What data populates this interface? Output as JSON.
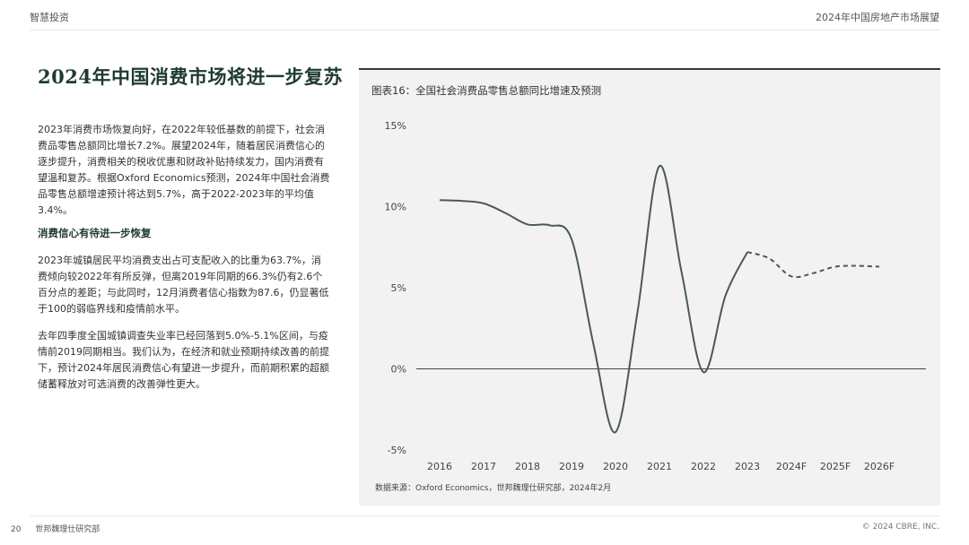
{
  "header": {
    "left": "智慧投资",
    "right": "2024年中国房地产市场展望"
  },
  "main": {
    "title": "2024年中国消费市场将进一步复苏",
    "para1": "2023年消费市场恢复向好，在2022年较低基数的前提下，社会消费品零售总额同比增长7.2%。展望2024年，随着居民消费信心的逐步提升，消费相关的税收优惠和财政补贴持续发力，国内消费有望温和复苏。根据Oxford Economics预测，2024年中国社会消费品零售总额增速预计将达到5.7%，高于2022-2023年的平均值3.4%。",
    "subhead": "消费信心有待进一步恢复",
    "para2": "2023年城镇居民平均消费支出占可支配收入的比重为63.7%，消费倾向较2022年有所反弹，但离2019年同期的66.3%仍有2.6个百分点的差距；与此同时，12月消费者信心指数为87.6，仍显著低于100的弱临界线和疫情前水平。",
    "para3": "去年四季度全国城镇调查失业率已经回落到5.0%-5.1%区间，与疫情前2019同期相当。我们认为，在经济和就业预期持续改善的前提下，预计2024年居民消费信心有望进一步提升，而前期积累的超额储蓄释放对可选消费的改善弹性更大。"
  },
  "chart_panel": {
    "title": "图表16：全国社会消费品零售总额同比增速及预测",
    "source": "数据来源：Oxford Economics，世邦魏理仕研究部，2024年2月"
  },
  "chart_data": {
    "type": "line",
    "title": "图表16：全国社会消费品零售总额同比增速及预测",
    "categories": [
      "2016",
      "2017",
      "2018",
      "2019",
      "2020",
      "2021",
      "2022",
      "2023",
      "2024F",
      "2025F",
      "2026F"
    ],
    "y_tick_labels": [
      "15%",
      "10%",
      "5%",
      "0%",
      "-5%"
    ],
    "y_ticks": [
      15,
      10,
      5,
      0,
      -5
    ],
    "ylim": [
      -5,
      15
    ],
    "zero_line": true,
    "grid": false,
    "legend": "none",
    "series": [
      {
        "style": "solid",
        "color": "#4a5a52",
        "points": [
          {
            "x": "2016",
            "y": 10.4
          },
          {
            "x": "2016.5",
            "y": 10.35
          },
          {
            "x": "2017",
            "y": 10.2
          },
          {
            "x": "2017.5",
            "y": 9.6
          },
          {
            "x": "2018",
            "y": 8.9
          },
          {
            "x": "2018.5",
            "y": 8.85
          },
          {
            "x": "2019",
            "y": 8.0
          },
          {
            "x": "2019.5",
            "y": 1.5
          },
          {
            "x": "2020",
            "y": -3.9
          },
          {
            "x": "2020.5",
            "y": 3.5
          },
          {
            "x": "2021",
            "y": 12.5
          },
          {
            "x": "2021.5",
            "y": 6.0
          },
          {
            "x": "2022",
            "y": -0.2
          },
          {
            "x": "2022.5",
            "y": 4.5
          },
          {
            "x": "2023",
            "y": 7.2
          }
        ]
      },
      {
        "style": "dashed",
        "color": "#4a5a52",
        "points": [
          {
            "x": "2023",
            "y": 7.2
          },
          {
            "x": "2023.5",
            "y": 6.8
          },
          {
            "x": "2024F",
            "y": 5.7
          },
          {
            "x": "2024F.5",
            "y": 5.9
          },
          {
            "x": "2025F",
            "y": 6.3
          },
          {
            "x": "2025F.5",
            "y": 6.35
          },
          {
            "x": "2026F",
            "y": 6.3
          }
        ]
      }
    ]
  },
  "footer": {
    "left": "世邦魏理仕研究部",
    "page_no": "20",
    "right": "© 2024 CBRE, INC."
  }
}
